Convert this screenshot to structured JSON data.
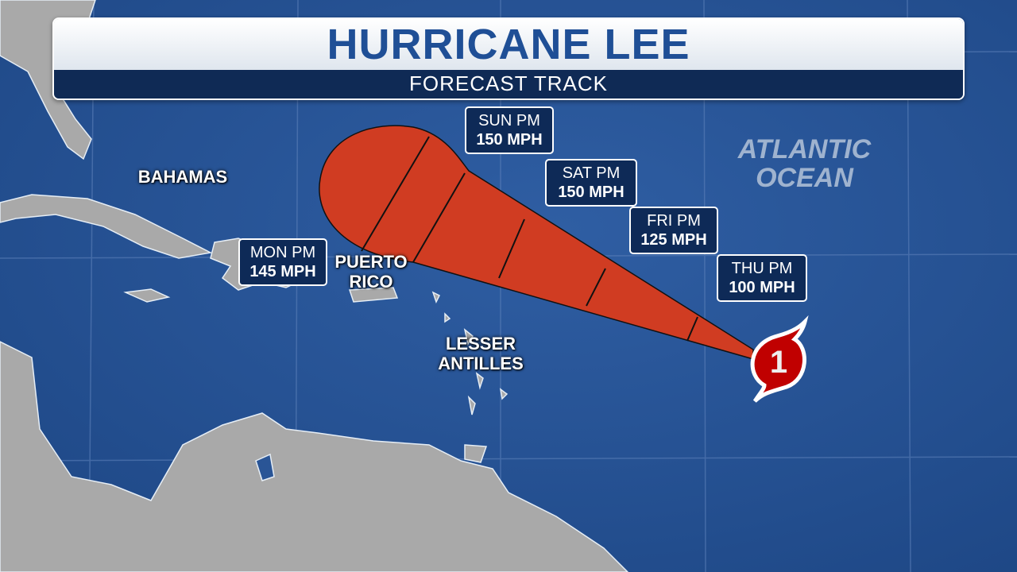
{
  "header": {
    "title": "HURRICANE LEE",
    "subtitle": "FORECAST TRACK"
  },
  "forecast_points": [
    {
      "time": "SUN PM",
      "wind": "150 MPH"
    },
    {
      "time": "SAT PM",
      "wind": "150 MPH"
    },
    {
      "time": "FRI PM",
      "wind": "125 MPH"
    },
    {
      "time": "THU PM",
      "wind": "100 MPH"
    },
    {
      "time": "MON PM",
      "wind": "145 MPH"
    }
  ],
  "places": {
    "bahamas": "BAHAMAS",
    "puerto_rico": "PUERTO RICO",
    "lesser_antilles": "LESSER ANTILLES",
    "ocean": "ATLANTIC OCEAN"
  },
  "storm_icon": {
    "category": "1",
    "icon": "hurricane-symbol"
  },
  "colors": {
    "ocean": "#2a5596",
    "land": "#a9a9a9",
    "cone": "#d03c22",
    "storm": "#c00000",
    "label_bg": "#0e2a57"
  }
}
